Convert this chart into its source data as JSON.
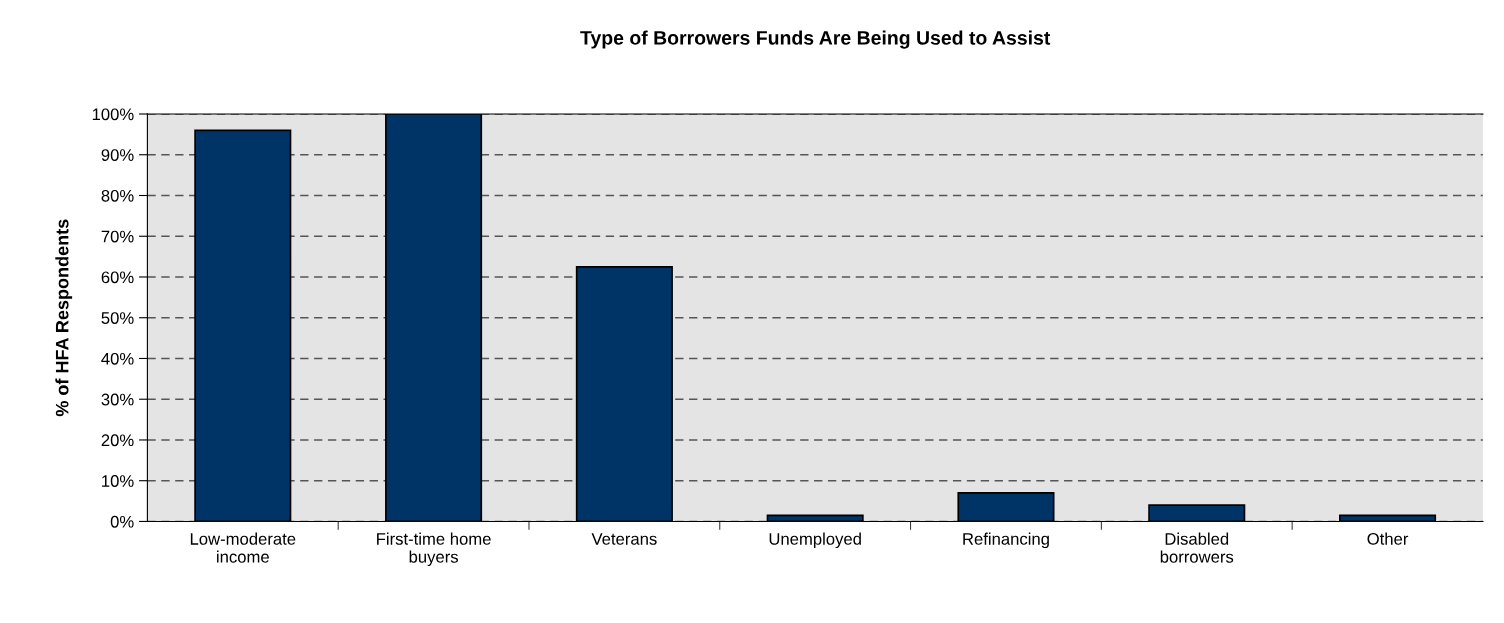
{
  "chart_data": {
    "type": "bar",
    "title": "Type of Borrowers Funds Are Being Used to Assist",
    "ylabel": "% of HFA Respondents",
    "categories": [
      "Low-moderate\nincome",
      "First-time home\nbuyers",
      "Veterans",
      "Unemployed",
      "Refinancing",
      "Disabled\nborrowers",
      "Other"
    ],
    "values": [
      96,
      100,
      62.5,
      1.5,
      7,
      4,
      1.5
    ],
    "color": "#003366",
    "ylim": [
      0,
      100
    ],
    "yticks": [
      {
        "value": 0,
        "label": "0%"
      },
      {
        "value": 10,
        "label": "10%"
      },
      {
        "value": 20,
        "label": "20%"
      },
      {
        "value": 30,
        "label": "30%"
      },
      {
        "value": 40,
        "label": "40%"
      },
      {
        "value": 50,
        "label": "50%"
      },
      {
        "value": 60,
        "label": "60%"
      },
      {
        "value": 70,
        "label": "70%"
      },
      {
        "value": 80,
        "label": "80%"
      },
      {
        "value": 90,
        "label": "90%"
      },
      {
        "value": 100,
        "label": "100%"
      }
    ],
    "grid": "y",
    "line_style": "dashed",
    "legend": false
  }
}
